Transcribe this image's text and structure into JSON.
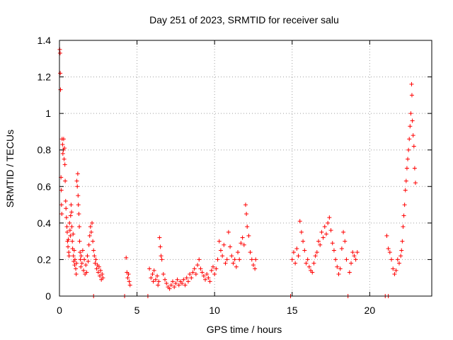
{
  "chart_data": {
    "type": "scatter",
    "title": "Day 251 of 2023, SRMTID for receiver salu",
    "xlabel": "GPS time / hours",
    "ylabel": "SRMTID / TECUs",
    "xlim": [
      0,
      24
    ],
    "ylim": [
      0,
      1.4
    ],
    "xticks": [
      0,
      5,
      10,
      15,
      20
    ],
    "yticks": [
      0,
      0.2,
      0.4,
      0.6,
      0.8,
      1,
      1.2,
      1.4
    ],
    "xtick_labels": [
      "0",
      "5",
      "10",
      "15",
      "20"
    ],
    "ytick_labels": [
      "0",
      "0.2",
      "0.4",
      "0.6",
      "0.8",
      "1",
      "1.2",
      "1.4"
    ],
    "grid": true,
    "marker": "+",
    "color": "#ff0000",
    "series": [
      {
        "name": "SRMTID",
        "points": [
          [
            0.02,
            1.35
          ],
          [
            0.04,
            1.33
          ],
          [
            0.05,
            1.22
          ],
          [
            0.07,
            1.13
          ],
          [
            0.1,
            0.65
          ],
          [
            0.12,
            0.58
          ],
          [
            0.13,
            0.5
          ],
          [
            0.15,
            0.45
          ],
          [
            0.17,
            0.86
          ],
          [
            0.2,
            0.83
          ],
          [
            0.22,
            0.78
          ],
          [
            0.25,
            0.8
          ],
          [
            0.27,
            0.86
          ],
          [
            0.3,
            0.75
          ],
          [
            0.32,
            0.81
          ],
          [
            0.35,
            0.72
          ],
          [
            0.37,
            0.63
          ],
          [
            0.4,
            0.52
          ],
          [
            0.42,
            0.48
          ],
          [
            0.45,
            0.43
          ],
          [
            0.48,
            0.38
          ],
          [
            0.5,
            0.35
          ],
          [
            0.52,
            0.3
          ],
          [
            0.55,
            0.27
          ],
          [
            0.57,
            0.31
          ],
          [
            0.6,
            0.24
          ],
          [
            0.62,
            0.22
          ],
          [
            0.65,
            0.4
          ],
          [
            0.68,
            0.36
          ],
          [
            0.7,
            0.33
          ],
          [
            0.72,
            0.44
          ],
          [
            0.75,
            0.5
          ],
          [
            0.78,
            0.46
          ],
          [
            0.8,
            0.38
          ],
          [
            0.83,
            0.3
          ],
          [
            0.85,
            0.26
          ],
          [
            0.88,
            0.34
          ],
          [
            0.9,
            0.22
          ],
          [
            0.92,
            0.19
          ],
          [
            0.95,
            0.25
          ],
          [
            0.98,
            0.17
          ],
          [
            1.0,
            0.2
          ],
          [
            1.05,
            0.15
          ],
          [
            1.08,
            0.12
          ],
          [
            1.1,
            0.18
          ],
          [
            1.12,
            0.63
          ],
          [
            1.15,
            0.6
          ],
          [
            1.18,
            0.67
          ],
          [
            1.2,
            0.55
          ],
          [
            1.22,
            0.5
          ],
          [
            1.25,
            0.45
          ],
          [
            1.28,
            0.38
          ],
          [
            1.3,
            0.3
          ],
          [
            1.33,
            0.24
          ],
          [
            1.35,
            0.2
          ],
          [
            1.38,
            0.16
          ],
          [
            1.4,
            0.22
          ],
          [
            1.45,
            0.18
          ],
          [
            1.5,
            0.25
          ],
          [
            1.55,
            0.14
          ],
          [
            1.6,
            0.2
          ],
          [
            1.65,
            0.12
          ],
          [
            1.7,
            0.17
          ],
          [
            1.75,
            0.13
          ],
          [
            1.8,
            0.22
          ],
          [
            1.85,
            0.19
          ],
          [
            1.9,
            0.28
          ],
          [
            1.95,
            0.33
          ],
          [
            2.0,
            0.38
          ],
          [
            2.05,
            0.35
          ],
          [
            2.1,
            0.4
          ],
          [
            2.15,
            0.3
          ],
          [
            2.2,
            0.25
          ],
          [
            2.25,
            0.22
          ],
          [
            2.3,
            0.18
          ],
          [
            2.35,
            0.2
          ],
          [
            2.4,
            0.15
          ],
          [
            2.45,
            0.17
          ],
          [
            2.5,
            0.13
          ],
          [
            2.55,
            0.16
          ],
          [
            2.6,
            0.11
          ],
          [
            2.65,
            0.14
          ],
          [
            2.7,
            0.09
          ],
          [
            2.75,
            0.12
          ],
          [
            2.8,
            0.1
          ],
          [
            2.2,
            0.0
          ],
          [
            4.2,
            0.0
          ],
          [
            4.3,
            0.21
          ],
          [
            4.35,
            0.13
          ],
          [
            4.4,
            0.1
          ],
          [
            4.45,
            0.12
          ],
          [
            4.5,
            0.08
          ],
          [
            4.55,
            0.06
          ],
          [
            5.7,
            0.0
          ],
          [
            5.8,
            0.15
          ],
          [
            5.9,
            0.1
          ],
          [
            6.0,
            0.12
          ],
          [
            6.05,
            0.08
          ],
          [
            6.1,
            0.14
          ],
          [
            6.2,
            0.09
          ],
          [
            6.3,
            0.11
          ],
          [
            6.35,
            0.06
          ],
          [
            6.4,
            0.08
          ],
          [
            6.45,
            0.32
          ],
          [
            6.5,
            0.27
          ],
          [
            6.55,
            0.22
          ],
          [
            6.6,
            0.2
          ],
          [
            6.7,
            0.12
          ],
          [
            6.8,
            0.09
          ],
          [
            6.9,
            0.07
          ],
          [
            7.0,
            0.05
          ],
          [
            7.1,
            0.04
          ],
          [
            7.2,
            0.06
          ],
          [
            7.3,
            0.08
          ],
          [
            7.4,
            0.05
          ],
          [
            7.5,
            0.07
          ],
          [
            7.6,
            0.09
          ],
          [
            7.7,
            0.06
          ],
          [
            7.8,
            0.08
          ],
          [
            7.9,
            0.07
          ],
          [
            8.0,
            0.09
          ],
          [
            8.1,
            0.06
          ],
          [
            8.2,
            0.1
          ],
          [
            8.3,
            0.08
          ],
          [
            8.4,
            0.12
          ],
          [
            8.5,
            0.1
          ],
          [
            8.6,
            0.13
          ],
          [
            8.7,
            0.15
          ],
          [
            8.8,
            0.12
          ],
          [
            8.9,
            0.17
          ],
          [
            9.0,
            0.2
          ],
          [
            9.1,
            0.15
          ],
          [
            9.2,
            0.13
          ],
          [
            9.3,
            0.11
          ],
          [
            9.4,
            0.09
          ],
          [
            9.5,
            0.12
          ],
          [
            9.6,
            0.1
          ],
          [
            9.7,
            0.08
          ],
          [
            9.8,
            0.14
          ],
          [
            9.9,
            0.16
          ],
          [
            10.0,
            0.12
          ],
          [
            10.1,
            0.15
          ],
          [
            10.2,
            0.2
          ],
          [
            10.3,
            0.3
          ],
          [
            10.4,
            0.25
          ],
          [
            10.5,
            0.22
          ],
          [
            10.6,
            0.28
          ],
          [
            10.7,
            0.18
          ],
          [
            10.8,
            0.2
          ],
          [
            10.9,
            0.35
          ],
          [
            11.0,
            0.27
          ],
          [
            11.1,
            0.22
          ],
          [
            11.2,
            0.18
          ],
          [
            11.3,
            0.2
          ],
          [
            11.4,
            0.16
          ],
          [
            11.5,
            0.24
          ],
          [
            11.6,
            0.2
          ],
          [
            11.7,
            0.29
          ],
          [
            11.8,
            0.32
          ],
          [
            11.9,
            0.28
          ],
          [
            12.0,
            0.5
          ],
          [
            12.05,
            0.45
          ],
          [
            12.1,
            0.38
          ],
          [
            12.2,
            0.33
          ],
          [
            12.3,
            0.24
          ],
          [
            12.4,
            0.2
          ],
          [
            12.5,
            0.17
          ],
          [
            12.6,
            0.15
          ],
          [
            12.65,
            0.2
          ],
          [
            14.9,
            0.0
          ],
          [
            15.0,
            0.2
          ],
          [
            15.1,
            0.24
          ],
          [
            15.2,
            0.18
          ],
          [
            15.3,
            0.26
          ],
          [
            15.4,
            0.22
          ],
          [
            15.5,
            0.41
          ],
          [
            15.6,
            0.35
          ],
          [
            15.7,
            0.3
          ],
          [
            15.8,
            0.25
          ],
          [
            15.9,
            0.18
          ],
          [
            16.0,
            0.2
          ],
          [
            16.1,
            0.16
          ],
          [
            16.2,
            0.14
          ],
          [
            16.3,
            0.13
          ],
          [
            16.4,
            0.18
          ],
          [
            16.5,
            0.22
          ],
          [
            16.6,
            0.24
          ],
          [
            16.7,
            0.3
          ],
          [
            16.8,
            0.28
          ],
          [
            16.9,
            0.35
          ],
          [
            17.0,
            0.32
          ],
          [
            17.1,
            0.38
          ],
          [
            17.2,
            0.34
          ],
          [
            17.3,
            0.4
          ],
          [
            17.4,
            0.43
          ],
          [
            17.5,
            0.36
          ],
          [
            17.6,
            0.29
          ],
          [
            17.7,
            0.25
          ],
          [
            17.8,
            0.2
          ],
          [
            17.9,
            0.16
          ],
          [
            18.0,
            0.12
          ],
          [
            18.1,
            0.15
          ],
          [
            18.2,
            0.26
          ],
          [
            18.3,
            0.35
          ],
          [
            18.4,
            0.3
          ],
          [
            18.5,
            0.2
          ],
          [
            18.6,
            0.0
          ],
          [
            18.7,
            0.13
          ],
          [
            18.8,
            0.18
          ],
          [
            18.9,
            0.24
          ],
          [
            19.0,
            0.22
          ],
          [
            19.1,
            0.2
          ],
          [
            19.2,
            0.24
          ],
          [
            21.0,
            0.0
          ],
          [
            21.2,
            0.0
          ],
          [
            21.1,
            0.33
          ],
          [
            21.2,
            0.26
          ],
          [
            21.3,
            0.24
          ],
          [
            21.4,
            0.2
          ],
          [
            21.5,
            0.15
          ],
          [
            21.6,
            0.12
          ],
          [
            21.7,
            0.14
          ],
          [
            21.8,
            0.2
          ],
          [
            21.9,
            0.18
          ],
          [
            22.0,
            0.22
          ],
          [
            22.05,
            0.25
          ],
          [
            22.1,
            0.3
          ],
          [
            22.15,
            0.38
          ],
          [
            22.2,
            0.44
          ],
          [
            22.25,
            0.5
          ],
          [
            22.3,
            0.58
          ],
          [
            22.35,
            0.63
          ],
          [
            22.4,
            0.7
          ],
          [
            22.45,
            0.75
          ],
          [
            22.5,
            0.8
          ],
          [
            22.55,
            0.86
          ],
          [
            22.6,
            0.93
          ],
          [
            22.65,
            1.0
          ],
          [
            22.7,
            1.16
          ],
          [
            22.72,
            1.1
          ],
          [
            22.75,
            0.96
          ],
          [
            22.8,
            0.88
          ],
          [
            22.85,
            0.82
          ],
          [
            22.9,
            0.7
          ],
          [
            22.95,
            0.62
          ]
        ]
      }
    ]
  }
}
